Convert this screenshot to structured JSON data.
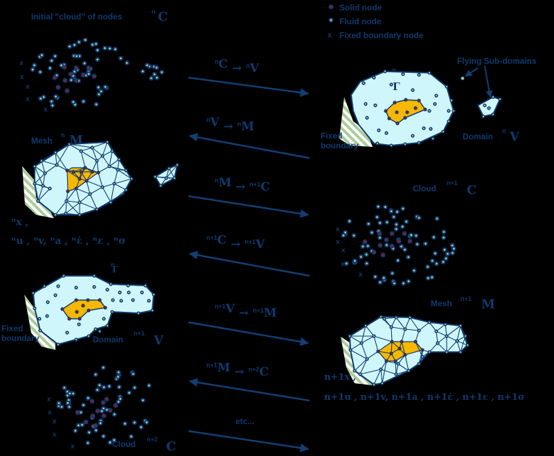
{
  "colors": {
    "background": "#000000",
    "text": "#0d3a6e",
    "arrow": "#123f73",
    "fluid_domain": "#cff7fb",
    "solid_domain": "#f7b800",
    "solid_node": "#d0021b",
    "fluid_node": "#a8c8a0",
    "hatch": "#a9cc9a"
  },
  "legend": {
    "solid": "Solid node",
    "fluid": "Fluid node",
    "fixed": "Fixed boundary node"
  },
  "labels": {
    "initial_cloud": "Initial \"cloud\" of nodes",
    "initial_cloud_sym_sup": "n",
    "initial_cloud_sym": "C",
    "flying": "Flying Sub-domains",
    "gamma_sup": "n",
    "gamma": "Γ",
    "fixed_boundary_1_a": "Fixed",
    "fixed_boundary_1_b": "boundary",
    "domain_1": "Domain",
    "domain_1_sup": "n",
    "domain_1_sym": "V",
    "mesh_1": "Mesh",
    "mesh_1_sup": "n",
    "mesh_1_sym": "M",
    "vars_1_x": "ⁿx ,",
    "vars_1": "ⁿu , ⁿv, ⁿa , ⁿε̇ , ⁿε , ⁿσ",
    "cloud_2": "Cloud",
    "cloud_2_sup": "n+1",
    "cloud_2_sym": "C",
    "gamma_2_sup": "n",
    "gamma_2": "Γ",
    "fixed_boundary_2_a": "Fixed",
    "fixed_boundary_2_b": "boundary",
    "domain_2": "Domain",
    "domain_2_sup": "n+1",
    "domain_2_sym": "V",
    "mesh_2": "Mesh",
    "mesh_2_sup": "n+1",
    "mesh_2_sym": "M",
    "vars_2_x": "n+1x ,",
    "vars_2": "n+1u , n+1v, n+1a , n+1ε̇ , n+1ε , n+1σ",
    "cloud_3": "Cloud",
    "cloud_3_sup": "n+2",
    "cloud_3_sym": "C"
  },
  "steps": [
    {
      "from_sup": "n",
      "from": "C",
      "to_sup": "n",
      "to": "V",
      "direction": "right"
    },
    {
      "from_sup": "n",
      "from": "V",
      "to_sup": "n",
      "to": "M",
      "direction": "left"
    },
    {
      "from_sup": "n",
      "from": "M",
      "to_sup": "n+1",
      "to": "C",
      "direction": "right"
    },
    {
      "from_sup": "n+1",
      "from": "C",
      "to_sup": "n+1",
      "to": "V",
      "direction": "left"
    },
    {
      "from_sup": "n+1",
      "from": "V",
      "to_sup": "n+1",
      "to": "M",
      "direction": "right"
    },
    {
      "from_sup": "n+1",
      "from": "M",
      "to_sup": "n+2",
      "to": "C",
      "direction": "left"
    },
    {
      "label": "etc...",
      "direction": "right"
    }
  ]
}
